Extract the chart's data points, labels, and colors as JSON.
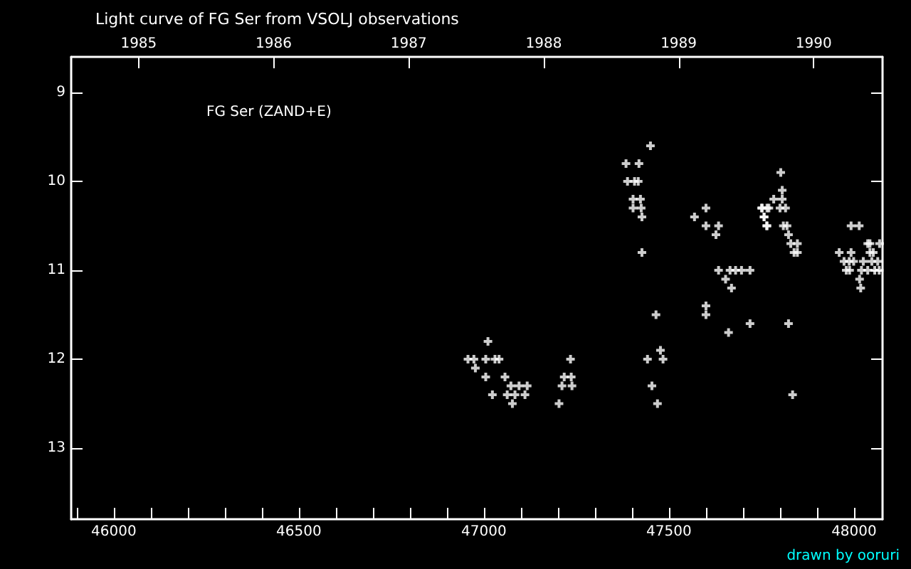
{
  "chart_data": {
    "type": "scatter",
    "title": "Light curve of FG Ser from VSOLJ observations",
    "annotations": [
      "FG Ser (ZAND+E)",
      "drawn by ooruri"
    ],
    "marker": "cross",
    "xlim": [
      45885,
      48077
    ],
    "ylim": [
      13.8,
      8.6
    ],
    "yticks": [
      9,
      10,
      11,
      12,
      13
    ],
    "xticks": [
      {
        "value": 45900,
        "label": null
      },
      46000,
      {
        "value": 46100,
        "label": null
      },
      {
        "value": 46200,
        "label": null
      },
      {
        "value": 46300,
        "label": null
      },
      {
        "value": 46400,
        "label": null
      },
      46500,
      {
        "value": 46600,
        "label": null
      },
      {
        "value": 46700,
        "label": null
      },
      {
        "value": 46800,
        "label": null
      },
      {
        "value": 46900,
        "label": null
      },
      47000,
      {
        "value": 47100,
        "label": null
      },
      {
        "value": 47200,
        "label": null
      },
      {
        "value": 47300,
        "label": null
      },
      {
        "value": 47400,
        "label": null
      },
      47500,
      {
        "value": 47600,
        "label": null
      },
      {
        "value": 47700,
        "label": null
      },
      {
        "value": 47800,
        "label": null
      },
      {
        "value": 47900,
        "label": null
      },
      48000
    ],
    "x2lim": [
      1984.5,
      1990.51
    ],
    "x2ticks": [
      1985,
      1986,
      1987,
      1988,
      1989,
      1990
    ],
    "series": [
      {
        "color": "#ffffff",
        "x": [
          47011,
          46957,
          46973,
          47005,
          47030,
          47041,
          46977,
          47005,
          47057,
          47073,
          47095,
          47117,
          47023,
          47063,
          47084,
          47111,
          47077,
          47234,
          47217,
          47236,
          47211,
          47238,
          47203,
          47450,
          47384,
          47419,
          47388,
          47407,
          47417,
          47403,
          47423,
          47403,
          47425,
          47427,
          47427,
          47465,
          47477,
          47442,
          47484,
          47454,
          47469,
          47600,
          47569,
          47600,
          47634,
          47627,
          47634,
          47665,
          47680,
          47696,
          47719,
          47653,
          47669,
          47600,
          47600,
          47661,
          47719,
          47750,
          47765,
          47757,
          47765,
          47802,
          47806,
          47783,
          47806,
          47752,
          47770,
          47800,
          47815,
          47757,
          47764,
          47809,
          47819,
          47823,
          47829,
          47847,
          47838,
          47847,
          47823,
          47834,
          47992,
          48014,
          48037,
          48043,
          48069,
          47960,
          47992,
          48043,
          48052,
          47973,
          47987,
          47999,
          48025,
          48048,
          48064,
          47979,
          47988,
          48020,
          48037,
          48056,
          48068,
          48015,
          48018
        ],
        "values": [
          11.8,
          12.0,
          12.0,
          12.0,
          12.0,
          12.0,
          12.1,
          12.2,
          12.2,
          12.3,
          12.3,
          12.3,
          12.4,
          12.4,
          12.4,
          12.4,
          12.5,
          12.0,
          12.2,
          12.2,
          12.3,
          12.3,
          12.5,
          9.6,
          9.8,
          9.8,
          10.0,
          10.0,
          10.0,
          10.2,
          10.2,
          10.3,
          10.3,
          10.4,
          10.8,
          11.5,
          11.9,
          12.0,
          12.0,
          12.3,
          12.5,
          10.3,
          10.4,
          10.5,
          10.5,
          10.6,
          11.0,
          11.0,
          11.0,
          11.0,
          11.0,
          11.1,
          11.2,
          11.4,
          11.5,
          11.7,
          11.6,
          10.3,
          10.3,
          10.4,
          10.5,
          9.9,
          10.1,
          10.2,
          10.2,
          10.3,
          10.3,
          10.3,
          10.3,
          10.4,
          10.5,
          10.5,
          10.5,
          10.6,
          10.7,
          10.7,
          10.8,
          10.8,
          11.6,
          12.4,
          10.5,
          10.5,
          10.7,
          10.7,
          10.7,
          10.8,
          10.8,
          10.8,
          10.8,
          10.9,
          10.9,
          10.9,
          10.9,
          10.9,
          10.9,
          11.0,
          11.0,
          11.0,
          11.0,
          11.0,
          11.0,
          11.1,
          11.2
        ]
      }
    ]
  }
}
